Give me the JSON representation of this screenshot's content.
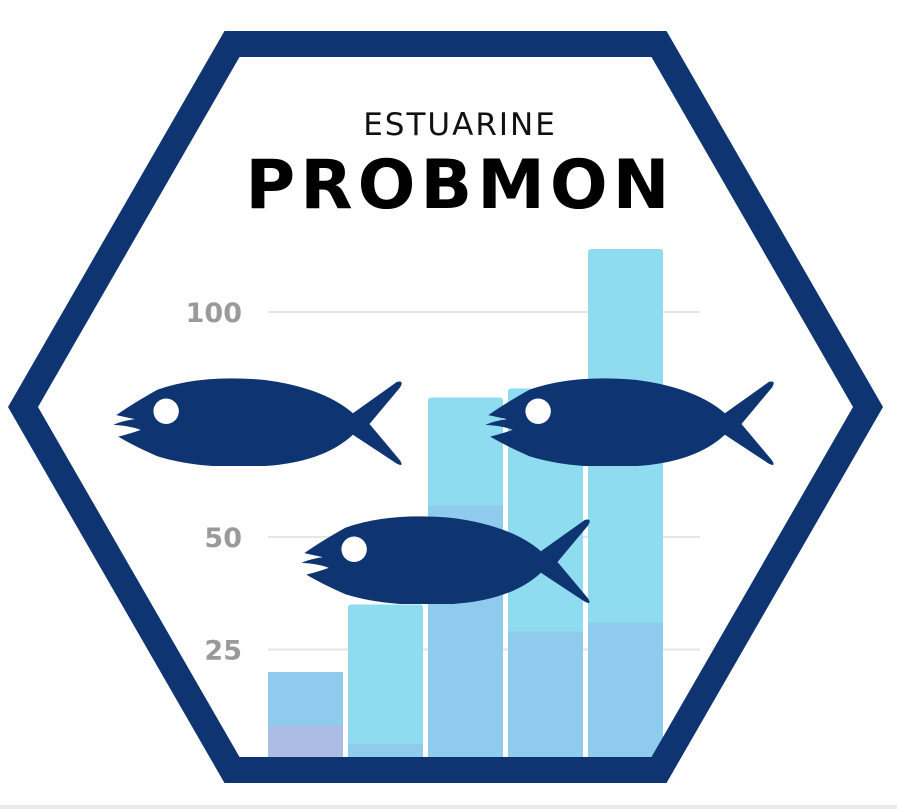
{
  "logo": {
    "subtitle": "ESTUARINE",
    "title": "PROBMON"
  },
  "colors": {
    "frame": "#0e3572",
    "fish": "#0e3572",
    "layer_back": "#8fdcf0",
    "layer_mid": "#8ecbec",
    "layer_front": "#abbde2",
    "grid": "#e6e6e6",
    "tick": "#9a9a9a"
  },
  "chart_data": {
    "type": "bar",
    "yticks": [
      25,
      50,
      100
    ],
    "series": [
      {
        "values": [
          20,
          35,
          81,
          83,
          114
        ]
      },
      {
        "values": [
          20,
          4,
          57,
          29,
          31
        ]
      },
      {
        "values": [
          8,
          0,
          0,
          0,
          0
        ]
      }
    ]
  },
  "icons": [
    "fish-icon",
    "fish-icon",
    "fish-icon"
  ]
}
